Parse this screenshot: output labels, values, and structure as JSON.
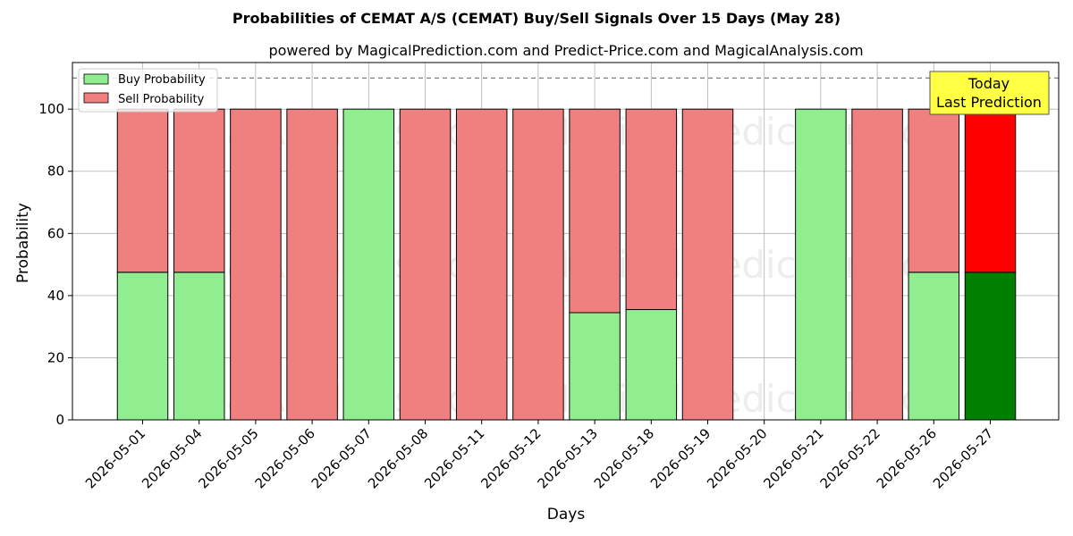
{
  "title": "Probabilities of CEMAT A/S (CEMAT) Buy/Sell Signals Over 15 Days (May 28)",
  "subtitle": "powered by MagicalPrediction.com and Predict-Price.com and MagicalAnalysis.com",
  "watermarks": [
    "MagicalAnalysis.com",
    "MagicalPrediction.com"
  ],
  "annotation": {
    "line1": "Today",
    "line2": "Last Prediction",
    "color": "#ffff44"
  },
  "legend": {
    "placement": "top-left",
    "buy_label": "Buy Probability",
    "sell_label": "Sell Probability"
  },
  "colors": {
    "buy": "#90ee90",
    "sell": "#f08080",
    "buy_today": "#008000",
    "sell_today": "#ff0000"
  },
  "chart_data": {
    "type": "bar",
    "stacked": true,
    "xlabel": "Days",
    "ylabel": "Probability",
    "ylim": [
      0,
      115
    ],
    "yticks": [
      0,
      20,
      40,
      60,
      80,
      100
    ],
    "reference_line": 110,
    "grid": true,
    "categories": [
      "2026-05-01",
      "2026-05-04",
      "2026-05-05",
      "2026-05-06",
      "2026-05-07",
      "2026-05-08",
      "2026-05-11",
      "2026-05-12",
      "2026-05-13",
      "2026-05-18",
      "2026-05-19",
      "2026-05-20",
      "2026-05-21",
      "2026-05-22",
      "2026-05-26",
      "2026-05-27"
    ],
    "series": [
      {
        "name": "Buy Probability",
        "values": [
          47.5,
          47.5,
          0,
          0,
          100,
          0,
          0,
          0,
          34.5,
          35.5,
          0,
          0,
          100,
          0,
          47.5,
          47.5
        ]
      },
      {
        "name": "Sell Probability",
        "values": [
          52.5,
          52.5,
          100,
          100,
          0,
          100,
          100,
          100,
          65.5,
          64.5,
          100,
          0,
          0,
          100,
          52.5,
          52.5
        ]
      }
    ],
    "highlight_index": 15
  }
}
